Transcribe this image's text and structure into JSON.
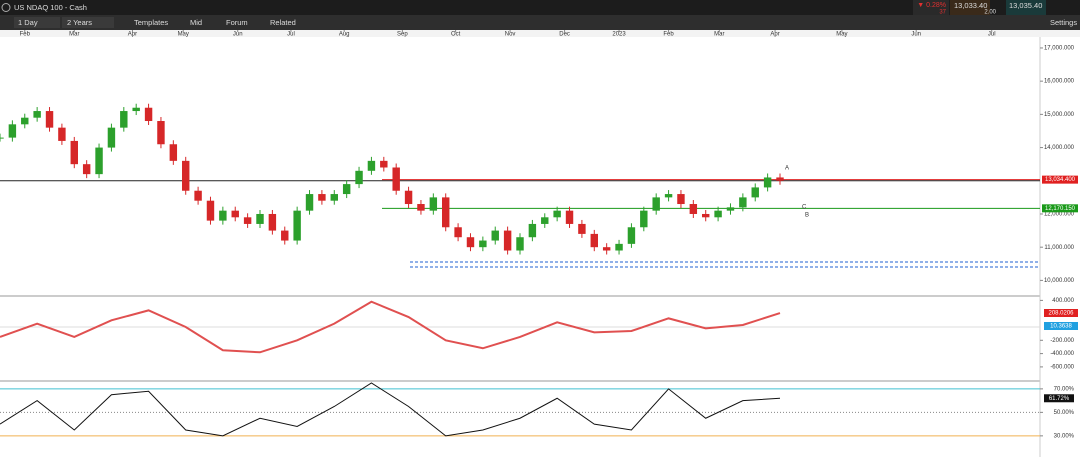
{
  "toolbar": {
    "instrument": "US NDAQ 100 - Cash",
    "interval": "1 Day",
    "range": "2 Years",
    "buttons": [
      "Templates",
      "Mid",
      "Forum",
      "Related"
    ],
    "change": "▼ 0.28%",
    "change_points": "37",
    "bid": "13,033.40",
    "spread": "2.00",
    "ask": "13,035.40",
    "settings": "Settings"
  },
  "chart_data": [
    {
      "type": "candlestick",
      "xlim": [
        -2,
        82
      ],
      "xticks": [
        {
          "value": 0,
          "label": "Feb"
        },
        {
          "value": 4,
          "label": "Mar"
        },
        {
          "value": 8.7,
          "label": "Apr"
        },
        {
          "value": 12.8,
          "label": "May"
        },
        {
          "value": 17.2,
          "label": "Jun"
        },
        {
          "value": 21.5,
          "label": "Jul"
        },
        {
          "value": 25.8,
          "label": "Aug"
        },
        {
          "value": 30.5,
          "label": "Sep"
        },
        {
          "value": 34.8,
          "label": "Oct"
        },
        {
          "value": 39.2,
          "label": "Nov"
        },
        {
          "value": 43.6,
          "label": "Dec"
        },
        {
          "value": 48,
          "label": "2023"
        },
        {
          "value": 52,
          "label": "Feb"
        },
        {
          "value": 56.1,
          "label": "Mar"
        },
        {
          "value": 60.6,
          "label": "Apr"
        },
        {
          "value": 66,
          "label": "May"
        },
        {
          "value": 72,
          "label": "Jun"
        },
        {
          "value": 78.1,
          "label": "Jul"
        }
      ],
      "x": [
        -2,
        -1,
        0,
        1,
        2,
        3,
        4,
        5,
        6,
        7,
        8,
        9,
        10,
        11,
        12,
        13,
        14,
        15,
        16,
        17,
        18,
        19,
        20,
        21,
        22,
        23,
        24,
        25,
        26,
        27,
        28,
        29,
        30,
        31,
        32,
        33,
        34,
        35,
        36,
        37,
        38,
        39,
        40,
        41,
        42,
        43,
        44,
        45,
        46,
        47,
        48,
        49,
        50,
        51,
        52,
        53,
        54,
        55,
        56,
        57,
        58,
        59,
        60,
        61
      ],
      "values": [
        14300,
        14700,
        14900,
        15100,
        14600,
        14200,
        13500,
        13200,
        14000,
        14600,
        15100,
        15200,
        14800,
        14100,
        13600,
        12700,
        12400,
        11800,
        12100,
        11900,
        11700,
        12000,
        11500,
        11200,
        12100,
        12600,
        12400,
        12600,
        12900,
        13300,
        13600,
        13400,
        12700,
        12300,
        12100,
        12500,
        11600,
        11300,
        11000,
        11200,
        11500,
        10900,
        11300,
        11700,
        11900,
        12100,
        11700,
        11400,
        11000,
        10900,
        11100,
        11600,
        12100,
        12500,
        12600,
        12300,
        12000,
        11900,
        12100,
        12200,
        12500,
        12800,
        13100,
        13000
      ],
      "up_color": "#2ca02c",
      "down_color": "#d62728",
      "ylim": [
        9560,
        17330
      ],
      "yticks": [
        {
          "value": 17000,
          "label": "17,000.000"
        },
        {
          "value": 16000,
          "label": "16,000.000"
        },
        {
          "value": 15000,
          "label": "15,000.000"
        },
        {
          "value": 14000,
          "label": "14,000.000"
        },
        {
          "value": 12000,
          "label": "12,000.000"
        },
        {
          "value": 11000,
          "label": "11,000.000"
        },
        {
          "value": 10000,
          "label": "10,000.000"
        }
      ],
      "levels": [
        {
          "value": 13034.4,
          "label": "13,034.400",
          "color": "#e02020"
        },
        {
          "value": 12170.15,
          "label": "12,170.150",
          "color": "#1a9a1a"
        },
        {
          "value": 13000,
          "color": "#222222"
        }
      ],
      "annotations": [
        "A",
        "B",
        "C"
      ]
    },
    {
      "type": "line",
      "xlim": [
        -2,
        82
      ],
      "x": [
        -2,
        1,
        4,
        7,
        10,
        13,
        16,
        19,
        22,
        25,
        28,
        31,
        34,
        37,
        40,
        43,
        46,
        49,
        52,
        55,
        58,
        61
      ],
      "values": [
        -150,
        50,
        -150,
        100,
        250,
        0,
        -350,
        -380,
        -200,
        50,
        380,
        150,
        -200,
        -320,
        -150,
        70,
        -80,
        -60,
        130,
        -20,
        30,
        210
      ],
      "color": "#e05050",
      "ylim": [
        -797,
        451
      ],
      "yticks": [
        {
          "value": 400,
          "label": "400.000"
        },
        {
          "value": -200,
          "label": "-200.000"
        },
        {
          "value": -400,
          "label": "-400.000"
        },
        {
          "value": -600,
          "label": "-600.000"
        }
      ],
      "last_labels": [
        "208.0206",
        "10.3638"
      ]
    },
    {
      "type": "line",
      "xlim": [
        -2,
        82
      ],
      "x": [
        -2,
        1,
        4,
        7,
        10,
        13,
        16,
        19,
        22,
        25,
        28,
        31,
        34,
        37,
        40,
        43,
        46,
        49,
        52,
        55,
        58,
        61
      ],
      "values": [
        40,
        60,
        35,
        65,
        68,
        35,
        30,
        45,
        38,
        55,
        75,
        55,
        30,
        35,
        45,
        62,
        40,
        35,
        70,
        45,
        60,
        62
      ],
      "color": "#111111",
      "ylim": [
        12,
        75
      ],
      "yticks": [
        {
          "value": 70,
          "label": "70.00%"
        },
        {
          "value": 50,
          "label": "50.00%"
        },
        {
          "value": 30,
          "label": "30.00%"
        }
      ],
      "last_label": "61.72%"
    }
  ]
}
